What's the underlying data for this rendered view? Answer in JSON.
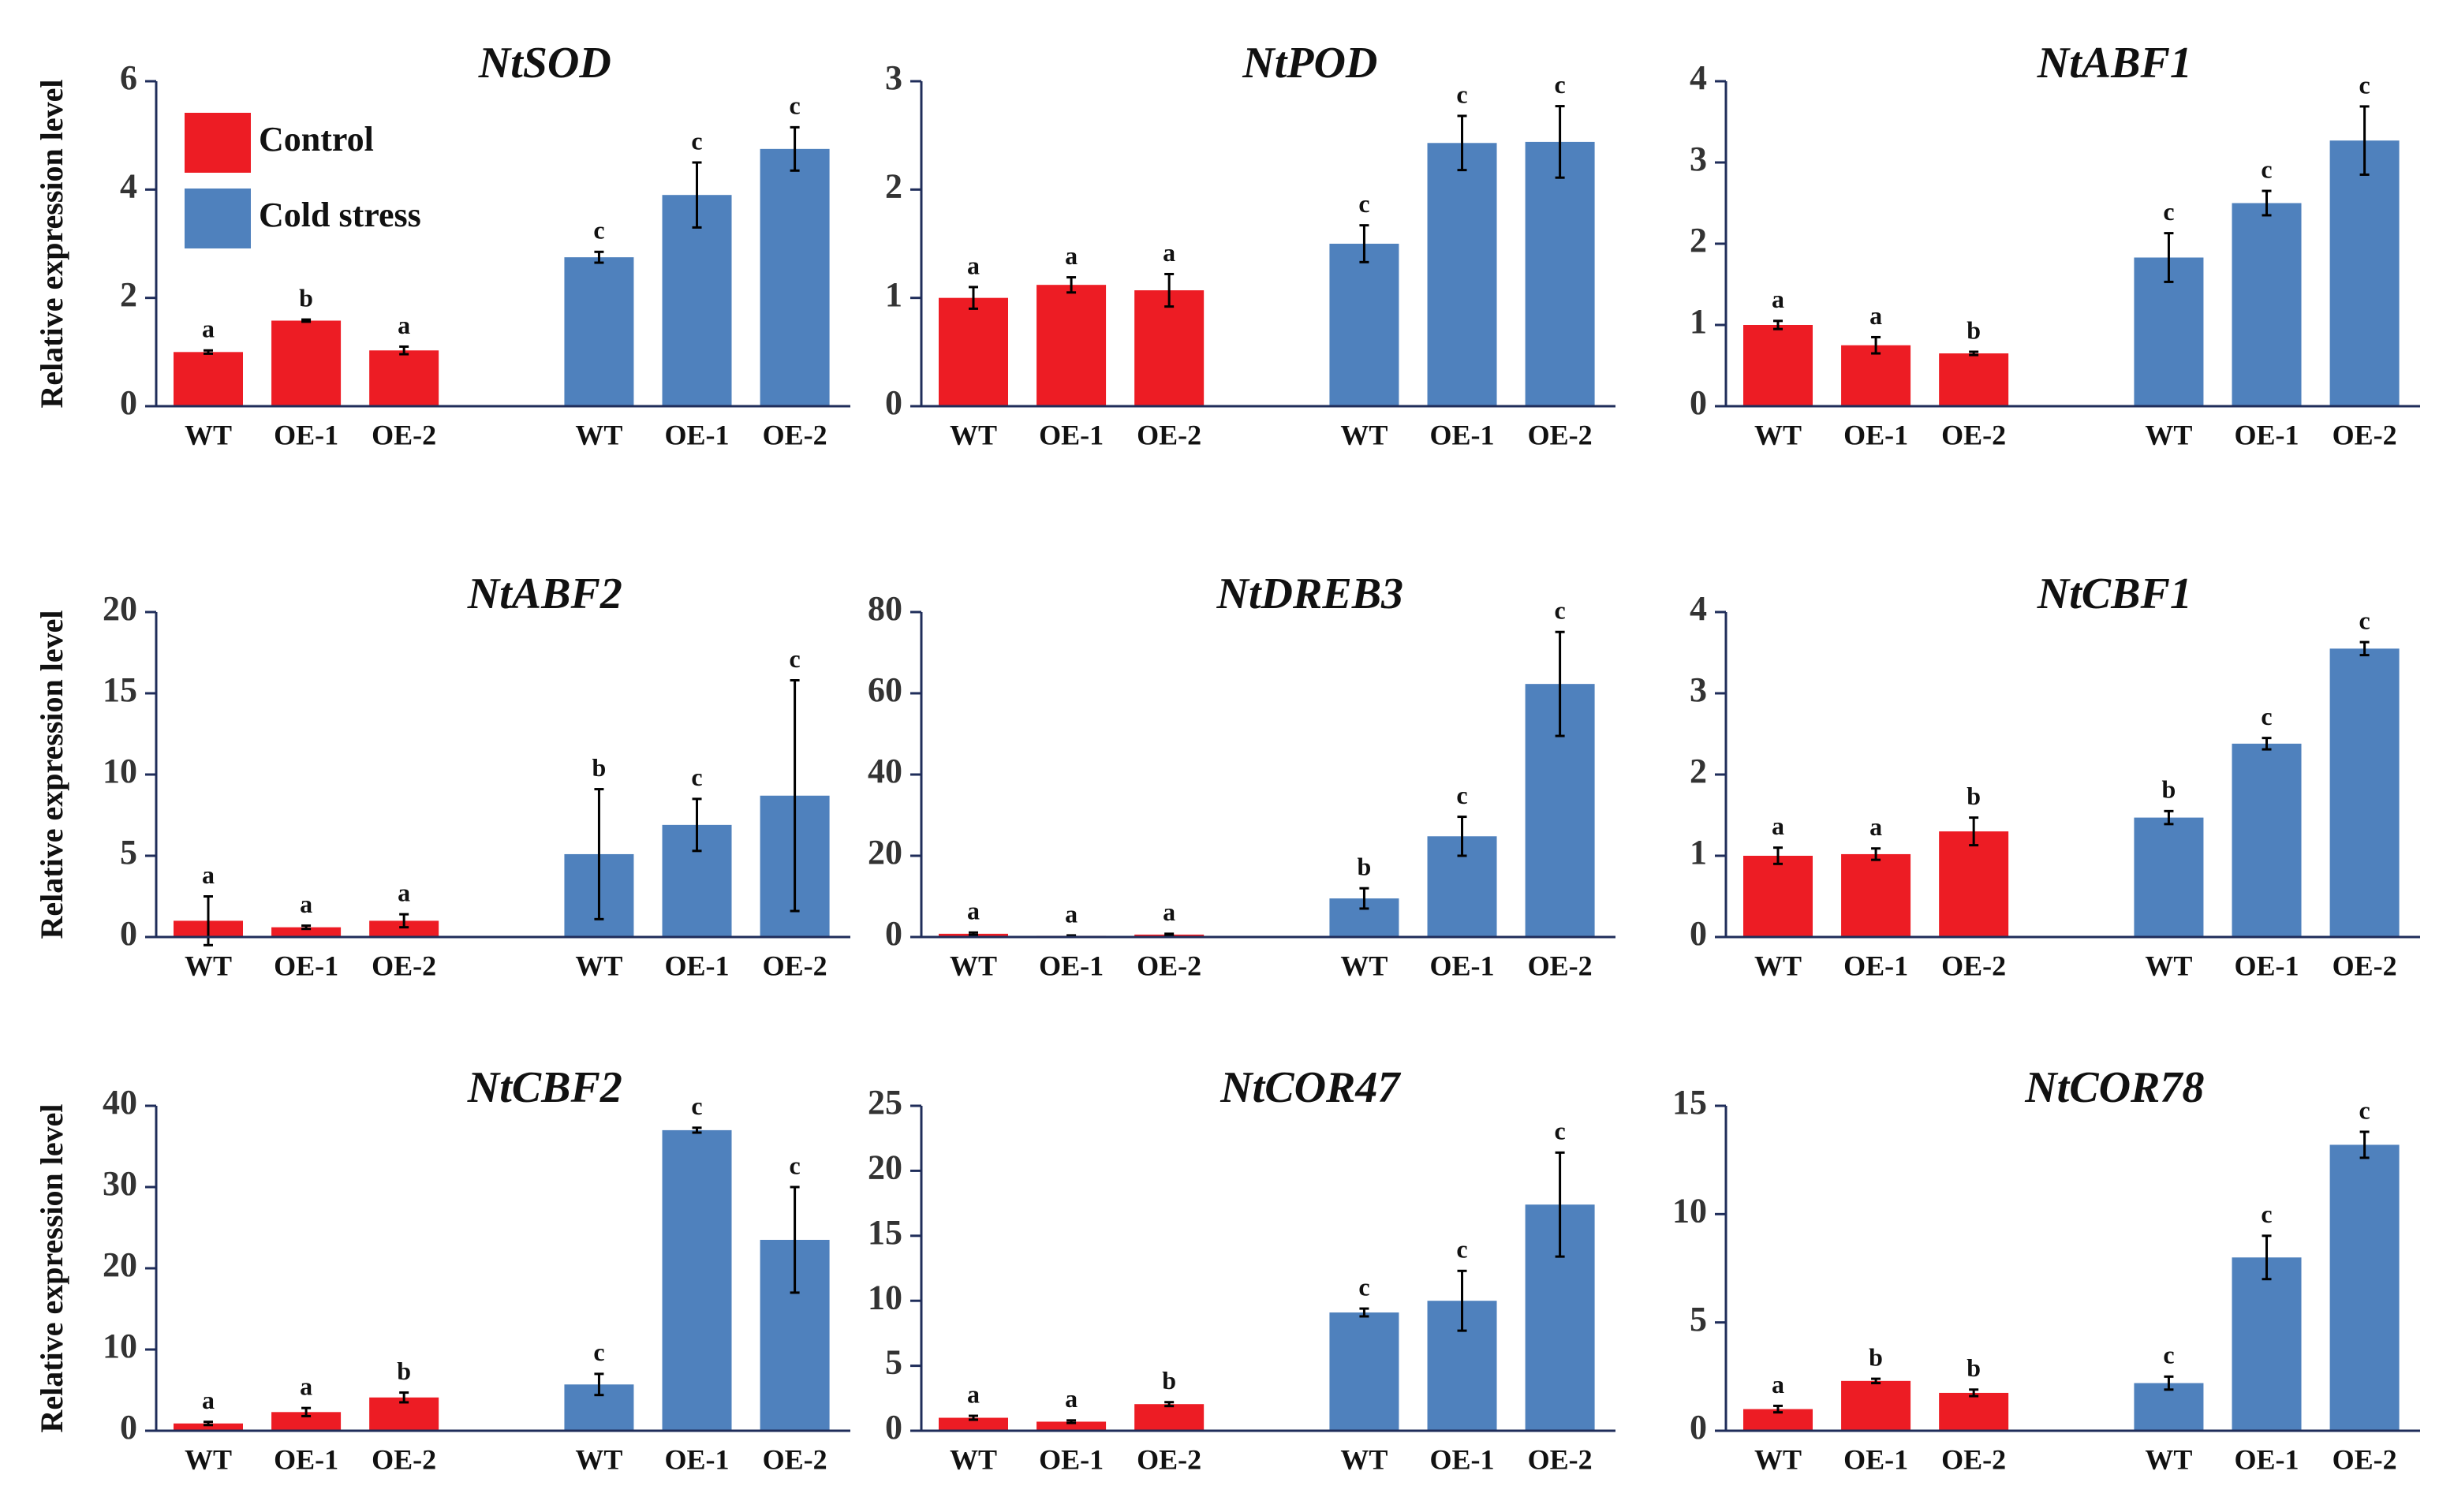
{
  "chart_data": [
    {
      "type": "bar",
      "title": "NtSOD",
      "ylabel": "Relative expression level",
      "legend": "top-left",
      "categories": [
        "WT",
        "OE-1",
        "OE-2"
      ],
      "ylim": [
        0,
        6
      ],
      "yticks": [
        0,
        2,
        4,
        6
      ],
      "series": [
        {
          "name": "Control",
          "color": "#ed1c24",
          "values": [
            1.0,
            1.58,
            1.03
          ],
          "errors": [
            0.03,
            0.02,
            0.07
          ],
          "significance": [
            "a",
            "b",
            "a"
          ]
        },
        {
          "name": "Cold stress",
          "color": "#4f81bd",
          "values": [
            2.75,
            3.9,
            4.75
          ],
          "errors": [
            0.1,
            0.6,
            0.4
          ],
          "significance": [
            "c",
            "c",
            "c"
          ]
        }
      ]
    },
    {
      "type": "bar",
      "title": "NtPOD",
      "categories": [
        "WT",
        "OE-1",
        "OE-2"
      ],
      "ylim": [
        0,
        3
      ],
      "yticks": [
        0,
        1,
        2,
        3
      ],
      "series": [
        {
          "color": "#ed1c24",
          "values": [
            1.0,
            1.12,
            1.07
          ],
          "errors": [
            0.1,
            0.07,
            0.15
          ],
          "significance": [
            "a",
            "a",
            "a"
          ]
        },
        {
          "color": "#4f81bd",
          "values": [
            1.5,
            2.43,
            2.44
          ],
          "errors": [
            0.17,
            0.25,
            0.33
          ],
          "significance": [
            "c",
            "c",
            "c"
          ]
        }
      ]
    },
    {
      "type": "bar",
      "title": "NtABF1",
      "categories": [
        "WT",
        "OE-1",
        "OE-2"
      ],
      "ylim": [
        0,
        4
      ],
      "yticks": [
        0,
        1,
        2,
        3,
        4
      ],
      "series": [
        {
          "color": "#ed1c24",
          "values": [
            1.0,
            0.75,
            0.65
          ],
          "errors": [
            0.05,
            0.1,
            0.02
          ],
          "significance": [
            "a",
            "a",
            "b"
          ]
        },
        {
          "color": "#4f81bd",
          "values": [
            1.83,
            2.5,
            3.27
          ],
          "errors": [
            0.3,
            0.15,
            0.42
          ],
          "significance": [
            "c",
            "c",
            "c"
          ]
        }
      ]
    },
    {
      "type": "bar",
      "title": "NtABF2",
      "ylabel": "Relative expression level",
      "categories": [
        "WT",
        "OE-1",
        "OE-2"
      ],
      "ylim": [
        0,
        20
      ],
      "yticks": [
        0,
        5,
        10,
        15,
        20
      ],
      "series": [
        {
          "color": "#ed1c24",
          "values": [
            1.0,
            0.6,
            1.0
          ],
          "errors": [
            1.5,
            0.1,
            0.4
          ],
          "significance": [
            "a",
            "a",
            "a"
          ]
        },
        {
          "color": "#4f81bd",
          "values": [
            5.1,
            6.9,
            8.7
          ],
          "errors": [
            4.0,
            1.6,
            7.1
          ],
          "significance": [
            "b",
            "c",
            "c"
          ]
        }
      ]
    },
    {
      "type": "bar",
      "title": "NtDREB3",
      "categories": [
        "WT",
        "OE-1",
        "OE-2"
      ],
      "ylim": [
        0,
        80
      ],
      "yticks": [
        0,
        20,
        40,
        60,
        80
      ],
      "series": [
        {
          "color": "#ed1c24",
          "values": [
            0.8,
            0.3,
            0.6
          ],
          "errors": [
            0.3,
            0.1,
            0.2
          ],
          "significance": [
            "a",
            "a",
            "a"
          ]
        },
        {
          "color": "#4f81bd",
          "values": [
            9.5,
            24.8,
            62.3
          ],
          "errors": [
            2.5,
            4.8,
            12.8
          ],
          "significance": [
            "b",
            "c",
            "c"
          ]
        }
      ]
    },
    {
      "type": "bar",
      "title": "NtCBF1",
      "categories": [
        "WT",
        "OE-1",
        "OE-2"
      ],
      "ylim": [
        0,
        4
      ],
      "yticks": [
        0,
        1,
        2,
        3,
        4
      ],
      "series": [
        {
          "color": "#ed1c24",
          "values": [
            1.0,
            1.02,
            1.3
          ],
          "errors": [
            0.1,
            0.07,
            0.17
          ],
          "significance": [
            "a",
            "a",
            "b"
          ]
        },
        {
          "color": "#4f81bd",
          "values": [
            1.47,
            2.38,
            3.55
          ],
          "errors": [
            0.08,
            0.07,
            0.08
          ],
          "significance": [
            "b",
            "c",
            "c"
          ]
        }
      ]
    },
    {
      "type": "bar",
      "title": "NtCBF2",
      "ylabel": "Relative expression level",
      "categories": [
        "WT",
        "OE-1",
        "OE-2"
      ],
      "ylim": [
        0,
        40
      ],
      "yticks": [
        0,
        10,
        20,
        30,
        40
      ],
      "series": [
        {
          "color": "#ed1c24",
          "values": [
            0.9,
            2.3,
            4.1
          ],
          "errors": [
            0.2,
            0.5,
            0.6
          ],
          "significance": [
            "a",
            "a",
            "b"
          ]
        },
        {
          "color": "#4f81bd",
          "values": [
            5.7,
            37,
            23.5
          ],
          "errors": [
            1.3,
            0.3,
            6.5
          ],
          "significance": [
            "c",
            "c",
            "c"
          ]
        }
      ]
    },
    {
      "type": "bar",
      "title": "NtCOR47",
      "categories": [
        "WT",
        "OE-1",
        "OE-2"
      ],
      "ylim": [
        0,
        25
      ],
      "yticks": [
        0,
        5,
        10,
        15,
        20,
        25
      ],
      "series": [
        {
          "color": "#ed1c24",
          "values": [
            1.0,
            0.7,
            2.05
          ],
          "errors": [
            0.15,
            0.1,
            0.15
          ],
          "significance": [
            "a",
            "a",
            "b"
          ]
        },
        {
          "color": "#4f81bd",
          "values": [
            9.1,
            10,
            17.4
          ],
          "errors": [
            0.3,
            2.3,
            4.0
          ],
          "significance": [
            "c",
            "c",
            "c"
          ]
        }
      ]
    },
    {
      "type": "bar",
      "title": "NtCOR78",
      "categories": [
        "WT",
        "OE-1",
        "OE-2"
      ],
      "ylim": [
        0,
        15
      ],
      "yticks": [
        0,
        5,
        10,
        15
      ],
      "series": [
        {
          "color": "#ed1c24",
          "values": [
            1.0,
            2.3,
            1.75
          ],
          "errors": [
            0.15,
            0.1,
            0.15
          ],
          "significance": [
            "a",
            "b",
            "b"
          ]
        },
        {
          "color": "#4f81bd",
          "values": [
            2.2,
            8.0,
            13.2
          ],
          "errors": [
            0.3,
            1.0,
            0.6
          ],
          "significance": [
            "c",
            "c",
            "c"
          ]
        }
      ]
    }
  ]
}
